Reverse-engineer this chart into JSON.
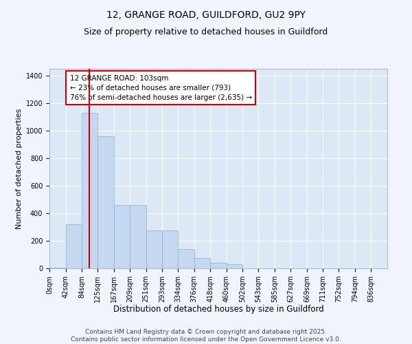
{
  "title1": "12, GRANGE ROAD, GUILDFORD, GU2 9PY",
  "title2": "Size of property relative to detached houses in Guildford",
  "xlabel": "Distribution of detached houses by size in Guildford",
  "ylabel": "Number of detached properties",
  "bar_values": [
    5,
    320,
    1130,
    960,
    460,
    460,
    275,
    275,
    140,
    75,
    40,
    30,
    0,
    0,
    0,
    0,
    0,
    0,
    0,
    0
  ],
  "bin_edges": [
    0,
    42,
    84,
    125,
    167,
    209,
    251,
    293,
    334,
    376,
    418,
    460,
    502,
    543,
    585,
    627,
    669,
    711,
    752,
    794,
    836
  ],
  "bin_labels": [
    "0sqm",
    "42sqm",
    "84sqm",
    "125sqm",
    "167sqm",
    "209sqm",
    "251sqm",
    "293sqm",
    "334sqm",
    "376sqm",
    "418sqm",
    "460sqm",
    "502sqm",
    "543sqm",
    "585sqm",
    "627sqm",
    "669sqm",
    "711sqm",
    "752sqm",
    "794sqm",
    "836sqm"
  ],
  "bar_color": "#c5d8f0",
  "bar_edge_color": "#7fb3d8",
  "vline_x": 103,
  "vline_color": "#cc0000",
  "annotation_text": "12 GRANGE ROAD: 103sqm\n← 23% of detached houses are smaller (793)\n76% of semi-detached houses are larger (2,635) →",
  "annotation_box_color": "#ffffff",
  "annotation_box_edge": "#cc0000",
  "ylim": [
    0,
    1450
  ],
  "yticks": [
    0,
    200,
    400,
    600,
    800,
    1000,
    1200,
    1400
  ],
  "fig_bg_color": "#f0f4fc",
  "ax_bg_color": "#dce8f5",
  "grid_color": "#ffffff",
  "footer_text": "Contains HM Land Registry data © Crown copyright and database right 2025.\nContains public sector information licensed under the Open Government Licence v3.0.",
  "title1_fontsize": 10,
  "title2_fontsize": 9,
  "xlabel_fontsize": 8.5,
  "ylabel_fontsize": 8,
  "tick_fontsize": 7,
  "annotation_fontsize": 7.5,
  "footer_fontsize": 6.5
}
